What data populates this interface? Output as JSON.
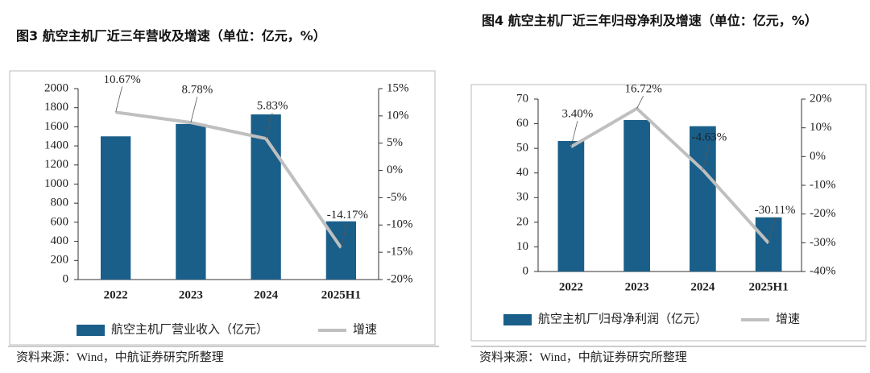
{
  "chart_data": [
    {
      "type": "bar-line",
      "title": "图3 航空主机厂近三年营收及增速（单位：亿元，%）",
      "categories": [
        "2022",
        "2023",
        "2024",
        "2025H1"
      ],
      "series": [
        {
          "name": "航空主机厂营业收入（亿元）",
          "color": "#1a5f8a",
          "type": "bar",
          "values": [
            1500,
            1630,
            1730,
            610
          ]
        },
        {
          "name": "增速",
          "color": "#bfbfbf",
          "type": "line",
          "axis": "y2",
          "values": [
            10.67,
            8.78,
            5.83,
            -14.17
          ],
          "value_labels": [
            "10.67%",
            "8.78%",
            "5.83%",
            "-14.17%"
          ]
        }
      ],
      "ylim": [
        0,
        2000
      ],
      "yticks": [
        0,
        200,
        400,
        600,
        800,
        1000,
        1200,
        1400,
        1600,
        1800,
        2000
      ],
      "y2lim": [
        -20,
        15
      ],
      "y2ticks": [
        {
          "value": -20,
          "label": "-20%"
        },
        {
          "value": -15,
          "label": "-15%"
        },
        {
          "value": -10,
          "label": "-10%"
        },
        {
          "value": -5,
          "label": "-5%"
        },
        {
          "value": 0,
          "label": "0%"
        },
        {
          "value": 5,
          "label": "5%"
        },
        {
          "value": 10,
          "label": "10%"
        },
        {
          "value": 15,
          "label": "15%"
        }
      ],
      "source": "资料来源：Wind，中航证券研究所整理"
    },
    {
      "type": "bar-line",
      "title": "图4 航空主机厂近三年归母净利及增速（单位：亿元，%）",
      "categories": [
        "2022",
        "2023",
        "2024",
        "2025H1"
      ],
      "series": [
        {
          "name": "航空主机厂归母净利润（亿元）",
          "color": "#1a5f8a",
          "type": "bar",
          "values": [
            53,
            61.5,
            59,
            22
          ]
        },
        {
          "name": "增速",
          "color": "#bfbfbf",
          "type": "line",
          "axis": "y2",
          "values": [
            3.4,
            16.72,
            -4.63,
            -30.11
          ],
          "value_labels": [
            "3.40%",
            "16.72%",
            "-4.63%",
            "-30.11%"
          ]
        }
      ],
      "ylim": [
        0,
        70
      ],
      "yticks": [
        0,
        10,
        20,
        30,
        40,
        50,
        60,
        70
      ],
      "y2lim": [
        -40,
        20
      ],
      "y2ticks": [
        {
          "value": -40,
          "label": "-40%"
        },
        {
          "value": -30,
          "label": "-30%"
        },
        {
          "value": -20,
          "label": "-20%"
        },
        {
          "value": -10,
          "label": "-10%"
        },
        {
          "value": 0,
          "label": "0%"
        },
        {
          "value": 10,
          "label": "10%"
        },
        {
          "value": 20,
          "label": "20%"
        }
      ],
      "source": "资料来源：Wind，中航证券研究所整理"
    }
  ]
}
